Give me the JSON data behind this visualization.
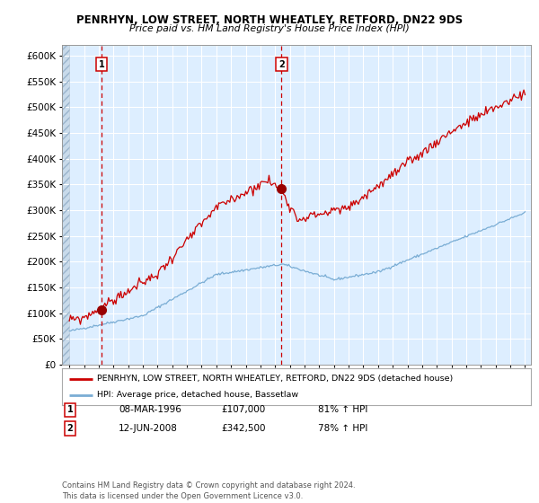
{
  "title1": "PENRHYN, LOW STREET, NORTH WHEATLEY, RETFORD, DN22 9DS",
  "title2": "Price paid vs. HM Land Registry's House Price Index (HPI)",
  "legend_line1": "PENRHYN, LOW STREET, NORTH WHEATLEY, RETFORD, DN22 9DS (detached house)",
  "legend_line2": "HPI: Average price, detached house, Bassetlaw",
  "annotation1_label": "1",
  "annotation1_date": "08-MAR-1996",
  "annotation1_price": "£107,000",
  "annotation1_hpi": "81% ↑ HPI",
  "annotation2_label": "2",
  "annotation2_date": "12-JUN-2008",
  "annotation2_price": "£342,500",
  "annotation2_hpi": "78% ↑ HPI",
  "footer": "Contains HM Land Registry data © Crown copyright and database right 2024.\nThis data is licensed under the Open Government Licence v3.0.",
  "red_color": "#cc0000",
  "blue_color": "#7aadd4",
  "bg_color": "#ddeeff",
  "grid_color": "#ffffff",
  "ylim": [
    0,
    620000
  ],
  "yticks": [
    0,
    50000,
    100000,
    150000,
    200000,
    250000,
    300000,
    350000,
    400000,
    450000,
    500000,
    550000,
    600000
  ],
  "sale1_year": 1996.18,
  "sale1_value": 107000,
  "sale2_year": 2008.44,
  "sale2_value": 342500,
  "xstart": 1994,
  "xend": 2025
}
